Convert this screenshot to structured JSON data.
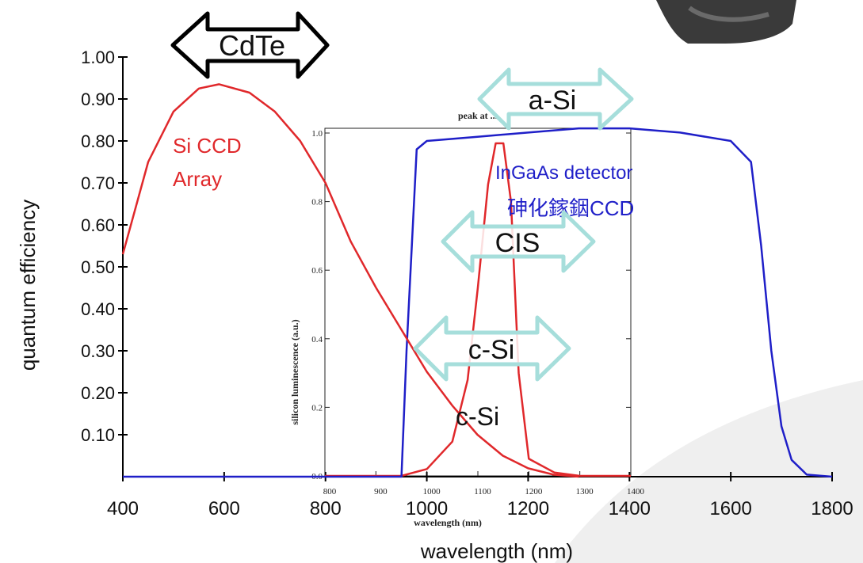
{
  "chart_data": [
    {
      "type": "line",
      "xlabel": "wavelength (nm)",
      "ylabel": "quantum efficiency",
      "xlim": [
        400,
        1800
      ],
      "ylim": [
        0,
        1.0
      ],
      "x_ticks": [
        "400",
        "600",
        "800",
        "1000",
        "1200",
        "1400",
        "1600",
        "1800"
      ],
      "y_ticks": [
        "0.10",
        "0.20",
        "0.30",
        "0.40",
        "0.50",
        "0.60",
        "0.70",
        "0.80",
        "0.90",
        "1.00"
      ],
      "grid": false,
      "series": [
        {
          "name": "Si CCD Array",
          "color": "#e0282b",
          "x": [
            400,
            450,
            500,
            550,
            590,
            650,
            700,
            750,
            800,
            850,
            900,
            950,
            1000,
            1050,
            1100,
            1150,
            1200,
            1250,
            1300
          ],
          "y": [
            0.53,
            0.75,
            0.87,
            0.925,
            0.935,
            0.915,
            0.87,
            0.8,
            0.7,
            0.56,
            0.45,
            0.35,
            0.25,
            0.17,
            0.1,
            0.05,
            0.02,
            0.005,
            0.0
          ]
        },
        {
          "name": "InGaAs detector 砷化鎵銦CCD",
          "color": "#1f1fc8",
          "x": [
            400,
            950,
            960,
            980,
            1000,
            1100,
            1200,
            1300,
            1400,
            1500,
            1600,
            1640,
            1660,
            1680,
            1700,
            1720,
            1750,
            1800
          ],
          "y": [
            0.0,
            0.0,
            0.3,
            0.78,
            0.8,
            0.81,
            0.82,
            0.83,
            0.83,
            0.82,
            0.8,
            0.75,
            0.55,
            0.3,
            0.12,
            0.04,
            0.005,
            0.0
          ]
        }
      ]
    },
    {
      "type": "line",
      "title": "peak at ...",
      "xlabel": "wavelength (nm)",
      "ylabel": "silicon luminescence (a.u.)",
      "xlim": [
        800,
        1400
      ],
      "ylim": [
        0,
        1.0
      ],
      "x_ticks": [
        "800",
        "900",
        "1000",
        "1100",
        "1200",
        "1300",
        "1400"
      ],
      "y_ticks": [
        "0.0",
        "0.2",
        "0.4",
        "0.6",
        "0.8",
        "1.0"
      ],
      "series": [
        {
          "name": "c-Si",
          "color": "#e0282b",
          "x": [
            800,
            950,
            1000,
            1050,
            1080,
            1100,
            1120,
            1135,
            1150,
            1165,
            1180,
            1200,
            1250,
            1300,
            1400
          ],
          "y": [
            0.0,
            0.0,
            0.02,
            0.1,
            0.28,
            0.55,
            0.85,
            0.97,
            0.97,
            0.8,
            0.3,
            0.05,
            0.01,
            0.0,
            0.0
          ]
        }
      ]
    }
  ],
  "labels": {
    "si_ccd_line1": "Si CCD",
    "si_ccd_line2": "Array",
    "ingaas_line1": "InGaAs detector",
    "ingaas_line2": "砷化鎵銦CCD",
    "c_si": "c-Si",
    "arrow_cdte": "CdTe",
    "arrow_asi": "a-Si",
    "arrow_cis": "CIS",
    "arrow_csi": "c-Si"
  },
  "colors": {
    "si_ccd": "#e0282b",
    "ingaas": "#1f1fc8",
    "arrow_fill": "#ffffff",
    "arrow_stroke_light": "#a6dedb",
    "arrow_stroke_dark": "#000000"
  }
}
